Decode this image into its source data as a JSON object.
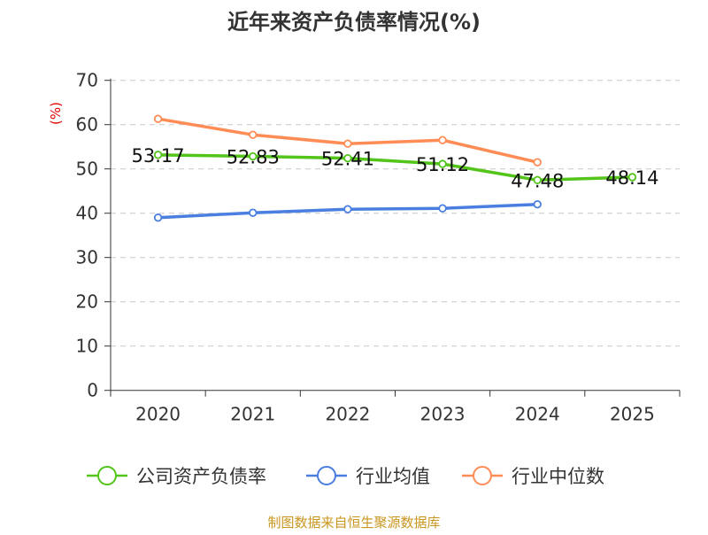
{
  "chart_data": {
    "type": "line",
    "title": "近年来资产负债率情况(%)",
    "ylabel": "(%)",
    "xlabel": "",
    "categories": [
      "2020",
      "2021",
      "2022",
      "2023",
      "2024",
      "2025"
    ],
    "ylim": [
      0,
      70
    ],
    "yticks": [
      "0",
      "10",
      "20",
      "30",
      "40",
      "50",
      "60",
      "70"
    ],
    "grid": true,
    "legend_position": "bottom",
    "series": [
      {
        "name": "公司资产负债率",
        "color": "#52c41a",
        "values": [
          53.17,
          52.83,
          52.41,
          51.12,
          47.48,
          48.14
        ],
        "labels": [
          "53.17",
          "52.83",
          "52.41",
          "51.12",
          "47.48",
          "48.14"
        ]
      },
      {
        "name": "行业均值",
        "color": "#4a7ee0",
        "values": [
          39.0,
          40.1,
          40.9,
          41.1,
          42.0,
          null
        ]
      },
      {
        "name": "行业中位数",
        "color": "#ff8c55",
        "values": [
          61.3,
          57.7,
          55.7,
          56.5,
          51.5,
          null
        ]
      }
    ]
  },
  "source": "制图数据来自恒生聚源数据库"
}
